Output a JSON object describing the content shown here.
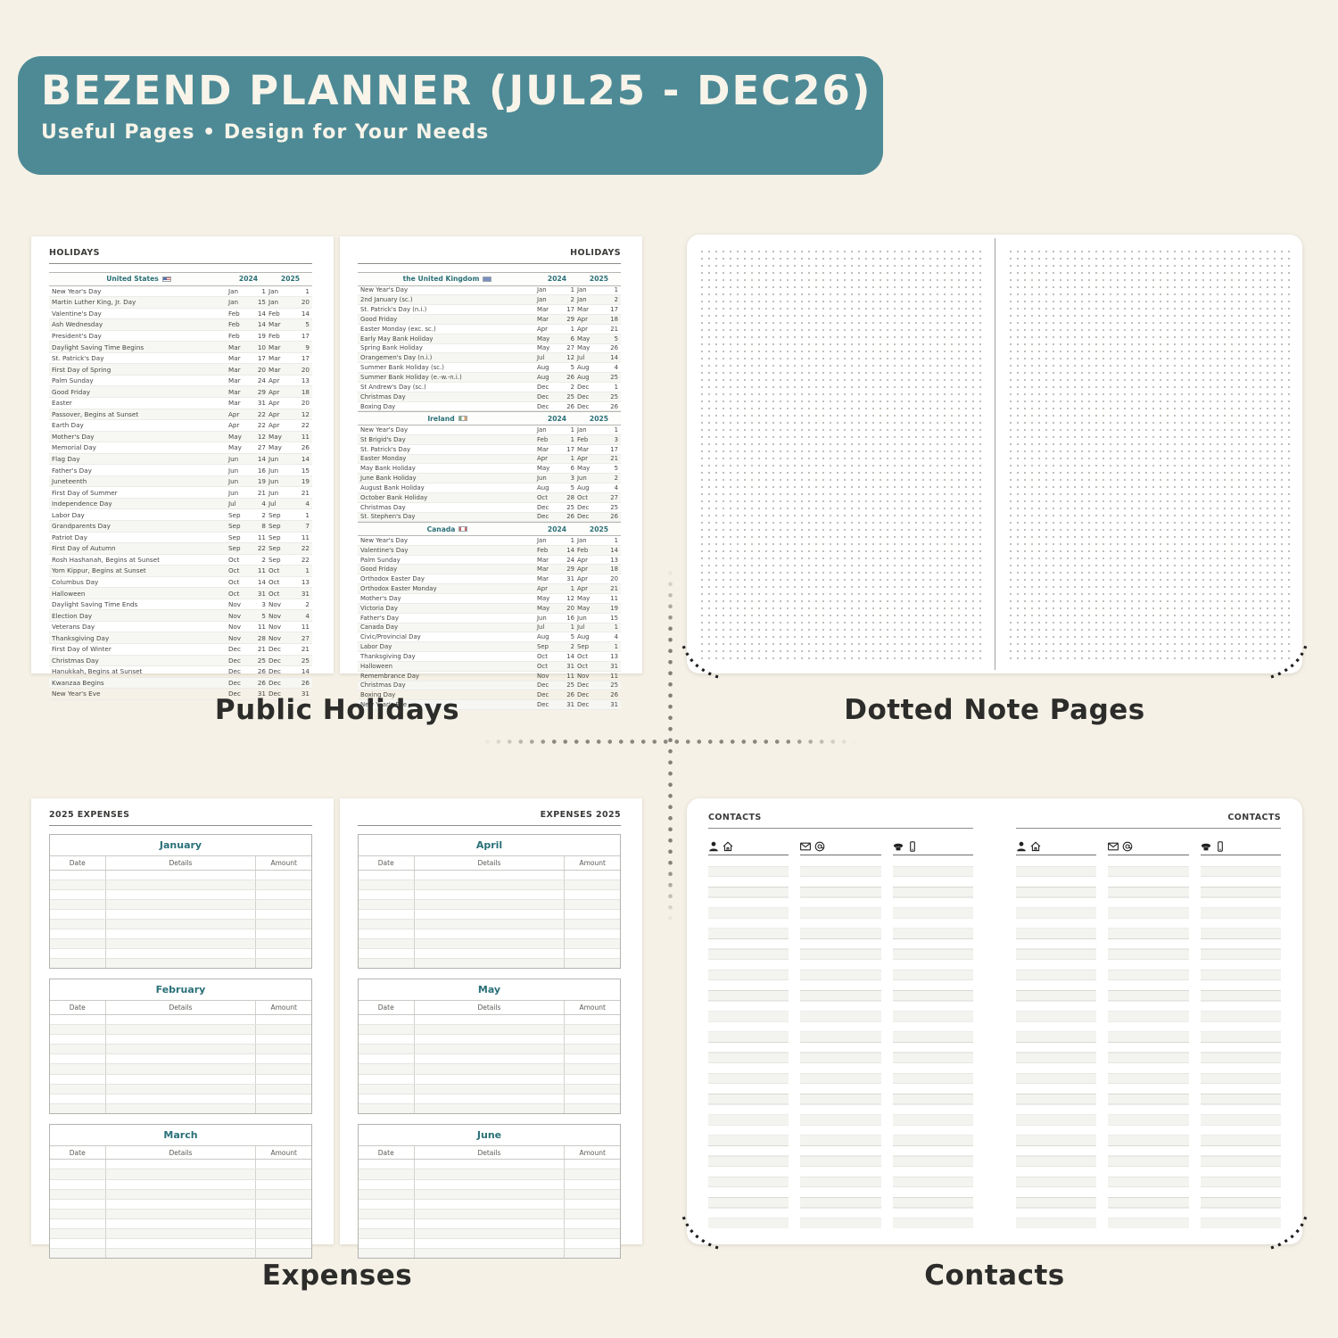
{
  "colors": {
    "banner_bg": "#4d8a96",
    "banner_text": "#f8f4e9",
    "teal_text": "#2a7078",
    "canvas_bg": "#f5f1e6"
  },
  "banner": {
    "title": "BEZEND PLANNER (JUL25 - DEC26)",
    "subtitle": "Useful Pages  •  Design for Your Needs"
  },
  "captions": {
    "holidays": "Public Holidays",
    "dotted": "Dotted Note Pages",
    "expenses": "Expenses",
    "contacts": "Contacts"
  },
  "holidays": {
    "page_header": "HOLIDAYS",
    "year_cols": [
      "2024",
      "2025"
    ],
    "left_sections": [
      {
        "country": "United States",
        "flag": "us",
        "rows": [
          [
            "New Year's Day",
            "Jan",
            "1",
            "Jan",
            "1"
          ],
          [
            "Martin Luther King, Jr. Day",
            "Jan",
            "15",
            "Jan",
            "20"
          ],
          [
            "Valentine's Day",
            "Feb",
            "14",
            "Feb",
            "14"
          ],
          [
            "Ash Wednesday",
            "Feb",
            "14",
            "Mar",
            "5"
          ],
          [
            "President's Day",
            "Feb",
            "19",
            "Feb",
            "17"
          ],
          [
            "Daylight Saving Time Begins",
            "Mar",
            "10",
            "Mar",
            "9"
          ],
          [
            "St. Patrick's Day",
            "Mar",
            "17",
            "Mar",
            "17"
          ],
          [
            "First Day of Spring",
            "Mar",
            "20",
            "Mar",
            "20"
          ],
          [
            "Palm Sunday",
            "Mar",
            "24",
            "Apr",
            "13"
          ],
          [
            "Good Friday",
            "Mar",
            "29",
            "Apr",
            "18"
          ],
          [
            "Easter",
            "Mar",
            "31",
            "Apr",
            "20"
          ],
          [
            "Passover, Begins at Sunset",
            "Apr",
            "22",
            "Apr",
            "12"
          ],
          [
            "Earth Day",
            "Apr",
            "22",
            "Apr",
            "22"
          ],
          [
            "Mother's Day",
            "May",
            "12",
            "May",
            "11"
          ],
          [
            "Memorial Day",
            "May",
            "27",
            "May",
            "26"
          ],
          [
            "Flag Day",
            "Jun",
            "14",
            "Jun",
            "14"
          ],
          [
            "Father's Day",
            "Jun",
            "16",
            "Jun",
            "15"
          ],
          [
            "Juneteenth",
            "Jun",
            "19",
            "Jun",
            "19"
          ],
          [
            "First Day of Summer",
            "Jun",
            "21",
            "Jun",
            "21"
          ],
          [
            "Independence Day",
            "Jul",
            "4",
            "Jul",
            "4"
          ],
          [
            "Labor Day",
            "Sep",
            "2",
            "Sep",
            "1"
          ],
          [
            "Grandparents Day",
            "Sep",
            "8",
            "Sep",
            "7"
          ],
          [
            "Patriot Day",
            "Sep",
            "11",
            "Sep",
            "11"
          ],
          [
            "First Day of Autumn",
            "Sep",
            "22",
            "Sep",
            "22"
          ],
          [
            "Rosh Hashanah, Begins at Sunset",
            "Oct",
            "2",
            "Sep",
            "22"
          ],
          [
            "Yom Kippur, Begins at Sunset",
            "Oct",
            "11",
            "Oct",
            "1"
          ],
          [
            "Columbus Day",
            "Oct",
            "14",
            "Oct",
            "13"
          ],
          [
            "Halloween",
            "Oct",
            "31",
            "Oct",
            "31"
          ],
          [
            "Daylight Saving Time Ends",
            "Nov",
            "3",
            "Nov",
            "2"
          ],
          [
            "Election Day",
            "Nov",
            "5",
            "Nov",
            "4"
          ],
          [
            "Veterans Day",
            "Nov",
            "11",
            "Nov",
            "11"
          ],
          [
            "Thanksgiving Day",
            "Nov",
            "28",
            "Nov",
            "27"
          ],
          [
            "First Day of Winter",
            "Dec",
            "21",
            "Dec",
            "21"
          ],
          [
            "Christmas Day",
            "Dec",
            "25",
            "Dec",
            "25"
          ],
          [
            "Hanukkah, Begins at Sunset",
            "Dec",
            "26",
            "Dec",
            "14"
          ],
          [
            "Kwanzaa Begins",
            "Dec",
            "26",
            "Dec",
            "26"
          ],
          [
            "New Year's Eve",
            "Dec",
            "31",
            "Dec",
            "31"
          ]
        ]
      }
    ],
    "right_sections": [
      {
        "country": "the United Kingdom",
        "flag": "uk",
        "rows": [
          [
            "New Year's Day",
            "Jan",
            "1",
            "Jan",
            "1"
          ],
          [
            "2nd January (sc.)",
            "Jan",
            "2",
            "Jan",
            "2"
          ],
          [
            "St. Patrick's Day (n.i.)",
            "Mar",
            "17",
            "Mar",
            "17"
          ],
          [
            "Good Friday",
            "Mar",
            "29",
            "Apr",
            "18"
          ],
          [
            "Easter Monday (exc. sc.)",
            "Apr",
            "1",
            "Apr",
            "21"
          ],
          [
            "Early May Bank Holiday",
            "May",
            "6",
            "May",
            "5"
          ],
          [
            "Spring Bank Holiday",
            "May",
            "27",
            "May",
            "26"
          ],
          [
            "Orangemen's Day (n.i.)",
            "Jul",
            "12",
            "Jul",
            "14"
          ],
          [
            "Summer Bank Holiday (sc.)",
            "Aug",
            "5",
            "Aug",
            "4"
          ],
          [
            "Summer Bank Holiday (e.-w.-n.i.)",
            "Aug",
            "26",
            "Aug",
            "25"
          ],
          [
            "St Andrew's Day (sc.)",
            "Dec",
            "2",
            "Dec",
            "1"
          ],
          [
            "Christmas Day",
            "Dec",
            "25",
            "Dec",
            "25"
          ],
          [
            "Boxing Day",
            "Dec",
            "26",
            "Dec",
            "26"
          ]
        ]
      },
      {
        "country": "Ireland",
        "flag": "ie",
        "rows": [
          [
            "New Year's Day",
            "Jan",
            "1",
            "Jan",
            "1"
          ],
          [
            "St Brigid's Day",
            "Feb",
            "1",
            "Feb",
            "3"
          ],
          [
            "St. Patrick's Day",
            "Mar",
            "17",
            "Mar",
            "17"
          ],
          [
            "Easter Monday",
            "Apr",
            "1",
            "Apr",
            "21"
          ],
          [
            "May Bank Holiday",
            "May",
            "6",
            "May",
            "5"
          ],
          [
            "June Bank Holiday",
            "Jun",
            "3",
            "Jun",
            "2"
          ],
          [
            "August Bank Holiday",
            "Aug",
            "5",
            "Aug",
            "4"
          ],
          [
            "October Bank Holiday",
            "Oct",
            "28",
            "Oct",
            "27"
          ],
          [
            "Christmas Day",
            "Dec",
            "25",
            "Dec",
            "25"
          ],
          [
            "St. Stephen's Day",
            "Dec",
            "26",
            "Dec",
            "26"
          ]
        ]
      },
      {
        "country": "Canada",
        "flag": "ca",
        "rows": [
          [
            "New Year's Day",
            "Jan",
            "1",
            "Jan",
            "1"
          ],
          [
            "Valentine's Day",
            "Feb",
            "14",
            "Feb",
            "14"
          ],
          [
            "Palm Sunday",
            "Mar",
            "24",
            "Apr",
            "13"
          ],
          [
            "Good Friday",
            "Mar",
            "29",
            "Apr",
            "18"
          ],
          [
            "Orthodox Easter Day",
            "Mar",
            "31",
            "Apr",
            "20"
          ],
          [
            "Orthodox Easter Monday",
            "Apr",
            "1",
            "Apr",
            "21"
          ],
          [
            "Mother's Day",
            "May",
            "12",
            "May",
            "11"
          ],
          [
            "Victoria Day",
            "May",
            "20",
            "May",
            "19"
          ],
          [
            "Father's Day",
            "Jun",
            "16",
            "Jun",
            "15"
          ],
          [
            "Canada Day",
            "Jul",
            "1",
            "Jul",
            "1"
          ],
          [
            "Civic/Provincial Day",
            "Aug",
            "5",
            "Aug",
            "4"
          ],
          [
            "Labor Day",
            "Sep",
            "2",
            "Sep",
            "1"
          ],
          [
            "Thanksgiving Day",
            "Oct",
            "14",
            "Oct",
            "13"
          ],
          [
            "Halloween",
            "Oct",
            "31",
            "Oct",
            "31"
          ],
          [
            "Remembrance Day",
            "Nov",
            "11",
            "Nov",
            "11"
          ],
          [
            "Christmas Day",
            "Dec",
            "25",
            "Dec",
            "25"
          ],
          [
            "Boxing Day",
            "Dec",
            "26",
            "Dec",
            "26"
          ],
          [
            "New Year's Eve",
            "Dec",
            "31",
            "Dec",
            "31"
          ]
        ]
      }
    ]
  },
  "expenses": {
    "left_header": "2025 EXPENSES",
    "right_header": "EXPENSES 2025",
    "columns": [
      "Date",
      "Details",
      "Amount"
    ],
    "left_months": [
      "January",
      "February",
      "March"
    ],
    "right_months": [
      "April",
      "May",
      "June"
    ],
    "rows_per_month": 10
  },
  "contacts": {
    "left_header": "CONTACTS",
    "right_header": "CONTACTS",
    "column_icons": [
      [
        "person-icon",
        "home-icon"
      ],
      [
        "envelope-icon",
        "at-icon"
      ],
      [
        "phone-icon",
        "mobile-icon"
      ]
    ]
  }
}
